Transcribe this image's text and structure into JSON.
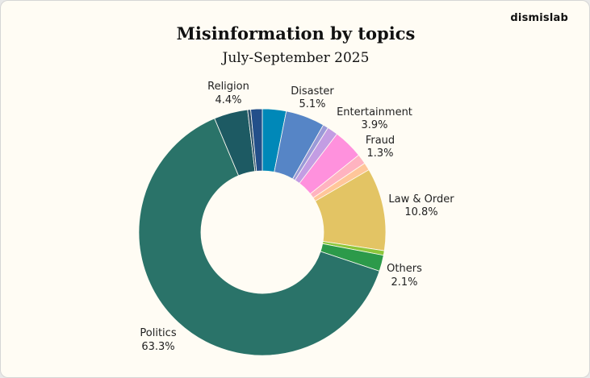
{
  "brand": "dismislab",
  "chart_data": {
    "type": "pie",
    "donut": true,
    "title": "Misinformation by topics",
    "subtitle": "July-September 2025",
    "slices": [
      {
        "name": "",
        "value": 3.1,
        "color": "#0088b8"
      },
      {
        "name": "Disaster",
        "value": 5.1,
        "color": "#5685c6"
      },
      {
        "name": "",
        "value": 0.7,
        "color": "#9a9ad8"
      },
      {
        "name": "",
        "value": 1.4,
        "color": "#c39de3"
      },
      {
        "name": "Entertainment",
        "value": 3.9,
        "color": "#ff91dd"
      },
      {
        "name": "Fraud",
        "value": 1.3,
        "color": "#ffb3c0"
      },
      {
        "name": "",
        "value": 1.0,
        "color": "#ffc69a"
      },
      {
        "name": "Law & Order",
        "value": 10.8,
        "color": "#e3c464"
      },
      {
        "name": "",
        "value": 0.6,
        "color": "#8dc63a"
      },
      {
        "name": "Others",
        "value": 2.1,
        "color": "#2c9a4a"
      },
      {
        "name": "Politics",
        "value": 63.3,
        "color": "#2a7369"
      },
      {
        "name": "Religion",
        "value": 4.4,
        "color": "#1d5a63"
      },
      {
        "name": "",
        "value": 0.4,
        "color": "#2a4f6a"
      },
      {
        "name": "",
        "value": 1.5,
        "color": "#234f8a"
      }
    ],
    "labels": [
      {
        "name": "Religion",
        "pct": "4.4%"
      },
      {
        "name": "Disaster",
        "pct": "5.1%"
      },
      {
        "name": "Entertainment",
        "pct": "3.9%"
      },
      {
        "name": "Fraud",
        "pct": "1.3%"
      },
      {
        "name": "Law & Order",
        "pct": "10.8%"
      },
      {
        "name": "Others",
        "pct": "2.1%"
      },
      {
        "name": "Politics",
        "pct": "63.3%"
      }
    ]
  }
}
